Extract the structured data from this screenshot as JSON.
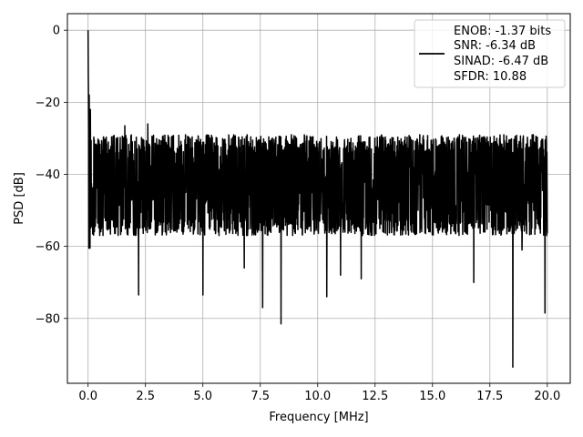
{
  "chart_data": {
    "type": "line",
    "title": "",
    "xlabel": "Frequency [MHz]",
    "ylabel": "PSD [dB]",
    "xlim": [
      -0.9,
      21.0
    ],
    "ylim": [
      -98,
      4.6
    ],
    "xticks": [
      0.0,
      2.5,
      5.0,
      7.5,
      10.0,
      12.5,
      15.0,
      17.5,
      20.0
    ],
    "xtick_labels": [
      "0.0",
      "2.5",
      "5.0",
      "7.5",
      "10.0",
      "12.5",
      "15.0",
      "17.5",
      "20.0"
    ],
    "yticks": [
      0,
      -20,
      -40,
      -60,
      -80
    ],
    "ytick_labels": [
      "0",
      "−20",
      "−40",
      "−60",
      "−80"
    ],
    "grid": true,
    "legend_position": "top-right",
    "series": [
      {
        "color": "#000000",
        "x_range": [
          0.0,
          20.0
        ],
        "noise_floor": {
          "upper_typical": -29,
          "lower_typical": -57,
          "median": -42
        },
        "peaks": [
          {
            "x": 0.0,
            "y": 0
          },
          {
            "x": 0.02,
            "y": -11
          },
          {
            "x": 0.05,
            "y": -18
          },
          {
            "x": 0.1,
            "y": -22
          },
          {
            "x": 1.6,
            "y": -26.5
          },
          {
            "x": 2.6,
            "y": -26
          },
          {
            "x": 6.8,
            "y": -24.5
          },
          {
            "x": 7.6,
            "y": -26.5
          },
          {
            "x": 0.08,
            "y": -60.5
          },
          {
            "x": 2.2,
            "y": -73.5
          },
          {
            "x": 5.0,
            "y": -73.5
          },
          {
            "x": 6.8,
            "y": -66
          },
          {
            "x": 7.6,
            "y": -77
          },
          {
            "x": 8.4,
            "y": -81.5
          },
          {
            "x": 10.4,
            "y": -74
          },
          {
            "x": 11.0,
            "y": -68
          },
          {
            "x": 11.9,
            "y": -69
          },
          {
            "x": 16.8,
            "y": -70
          },
          {
            "x": 18.5,
            "y": -93.5
          },
          {
            "x": 18.9,
            "y": -61
          },
          {
            "x": 19.9,
            "y": -78.5
          }
        ]
      }
    ]
  },
  "legend": {
    "lines": [
      "ENOB: -1.37 bits",
      "SNR: -6.34 dB",
      "SINAD: -6.47 dB",
      "SFDR: 10.88"
    ]
  }
}
